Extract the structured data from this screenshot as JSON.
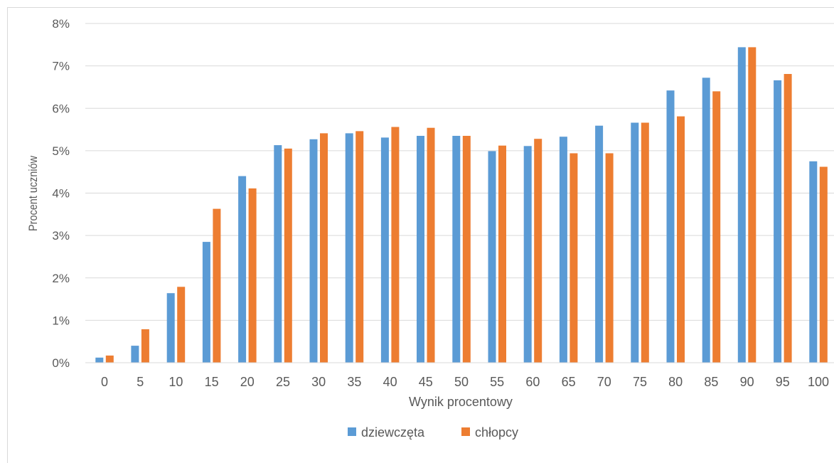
{
  "chart_data": {
    "type": "bar",
    "title": "",
    "xlabel": "Wynik procentowy",
    "ylabel": "Procent uczniów",
    "categories": [
      "0",
      "5",
      "10",
      "15",
      "20",
      "25",
      "30",
      "35",
      "40",
      "45",
      "50",
      "55",
      "60",
      "65",
      "70",
      "75",
      "80",
      "85",
      "90",
      "95",
      "100"
    ],
    "series": [
      {
        "name": "dziewczęta",
        "color": "#5b9bd5",
        "values": [
          0.12,
          0.4,
          1.64,
          2.85,
          4.4,
          5.13,
          5.27,
          5.41,
          5.31,
          5.35,
          5.35,
          4.99,
          5.11,
          5.33,
          5.59,
          5.66,
          6.42,
          6.72,
          7.44,
          6.66,
          4.75
        ]
      },
      {
        "name": "chłopcy",
        "color": "#ed7d31",
        "values": [
          0.17,
          0.79,
          1.79,
          3.63,
          4.11,
          5.05,
          5.41,
          5.46,
          5.56,
          5.54,
          5.35,
          5.12,
          5.28,
          4.94,
          4.94,
          5.66,
          5.81,
          6.4,
          7.44,
          6.81,
          4.62
        ]
      }
    ],
    "ylim": [
      0,
      8
    ],
    "yticks": [
      "0%",
      "1%",
      "2%",
      "3%",
      "4%",
      "5%",
      "6%",
      "7%",
      "8%"
    ],
    "grid": true,
    "legend": "bottom-center"
  }
}
